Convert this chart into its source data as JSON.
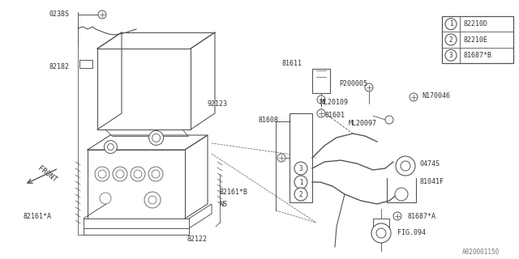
{
  "background_color": "#ffffff",
  "line_color": "#555555",
  "text_color": "#333333",
  "legend_items": [
    {
      "num": "1",
      "code": "82210D"
    },
    {
      "num": "2",
      "code": "82210E"
    },
    {
      "num": "3",
      "code": "81687*B"
    }
  ],
  "watermark": "A820001150",
  "figsize": [
    6.4,
    3.2
  ],
  "dpi": 100
}
